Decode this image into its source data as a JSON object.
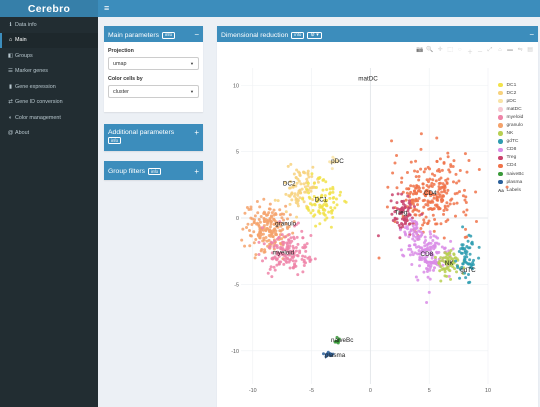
{
  "app": {
    "logo": "Cerebro",
    "menu_icon": "hamburger-icon"
  },
  "sidebar": {
    "items": [
      {
        "icon": "info-icon",
        "glyph": "ℹ",
        "label": "Data info"
      },
      {
        "icon": "home-icon",
        "glyph": "⌂",
        "label": "Main",
        "active": true
      },
      {
        "icon": "layers-icon",
        "glyph": "◧",
        "label": "Groups"
      },
      {
        "icon": "list-icon",
        "glyph": "☰",
        "label": "Marker genes"
      },
      {
        "icon": "bar-chart-icon",
        "glyph": "▮",
        "label": "Gene expression"
      },
      {
        "icon": "exchange-icon",
        "glyph": "⇄",
        "label": "Gene ID conversion"
      },
      {
        "icon": "palette-icon",
        "glyph": "◐",
        "label": "Color management"
      },
      {
        "icon": "at-icon",
        "glyph": "@",
        "label": "About"
      }
    ]
  },
  "main_params": {
    "title": "Main parameters",
    "info": "info",
    "collapse_icon": "−",
    "projection_label": "Projection",
    "projection_value": "umap",
    "color_label": "Color cells by",
    "color_value": "cluster"
  },
  "additional_params": {
    "title": "Additional parameters",
    "info": "info",
    "expand_icon": "+"
  },
  "group_filters": {
    "title": "Group filters",
    "info": "info",
    "expand_icon": "+"
  },
  "plot_box": {
    "title": "Dimensional reduction",
    "info": "info",
    "gear": "⚙ ▾",
    "collapse_icon": "−",
    "modebar": [
      "📷",
      "🔍",
      "✛",
      "⬚",
      "◌",
      "＋",
      "－",
      "⤢",
      "⌂",
      "▬",
      "⇋",
      "▤"
    ]
  },
  "colors": {
    "DC1": "#f1e24a",
    "DC2": "#f7d27e",
    "pDC": "#f9e3a6",
    "matDC": "#f6c9d2",
    "myeloid": "#ef84a8",
    "granulo": "#f4a26b",
    "NK": "#b8cf53",
    "gdTC": "#2e9cb0",
    "CD8": "#d98ce6",
    "Treg": "#c9436d",
    "CD4": "#f0734a",
    "naiveBc": "#3a9a3a",
    "plasma": "#2b5f9a"
  },
  "legend": [
    {
      "name": "DC1"
    },
    {
      "name": "DC2"
    },
    {
      "name": "pDC"
    },
    {
      "name": "matDC"
    },
    {
      "name": "myeloid"
    },
    {
      "name": "granulo"
    },
    {
      "name": "NK"
    },
    {
      "name": "gdTC"
    },
    {
      "name": "CD8"
    },
    {
      "name": "Treg"
    },
    {
      "name": "CD4"
    },
    {
      "name": "naiveBc"
    },
    {
      "name": "plasma"
    },
    {
      "name": "Labels",
      "aa": "Aa"
    }
  ],
  "chart_data": {
    "type": "scatter",
    "xlim": [
      -11,
      10
    ],
    "ylim": [
      -12.5,
      11.3
    ],
    "x_ticks": [
      -10,
      -5,
      0,
      5,
      10
    ],
    "y_ticks": [
      10,
      5,
      0,
      -5,
      -10
    ],
    "grid": true,
    "legend_position": "right",
    "clusters": [
      {
        "name": "CD4",
        "blobs": [
          [
            5.2,
            1.8,
            3.0,
            2.5,
            260
          ]
        ]
      },
      {
        "name": "Treg",
        "blobs": [
          [
            2.8,
            0.4,
            0.9,
            1.3,
            70
          ]
        ]
      },
      {
        "name": "CD8",
        "blobs": [
          [
            5.0,
            -2.8,
            1.8,
            1.6,
            150
          ],
          [
            3.5,
            -0.9,
            0.7,
            0.9,
            30
          ]
        ]
      },
      {
        "name": "NK",
        "blobs": [
          [
            6.7,
            -3.3,
            1.0,
            1.0,
            70
          ]
        ]
      },
      {
        "name": "gdTC",
        "blobs": [
          [
            8.2,
            -3.0,
            0.7,
            1.5,
            60
          ]
        ]
      },
      {
        "name": "granulo",
        "blobs": [
          [
            -8.8,
            -0.7,
            1.6,
            1.6,
            180
          ]
        ]
      },
      {
        "name": "myeloid",
        "blobs": [
          [
            -7.0,
            -2.6,
            2.0,
            1.4,
            150
          ]
        ]
      },
      {
        "name": "DC2",
        "blobs": [
          [
            -6.0,
            2.2,
            1.3,
            1.4,
            90
          ]
        ]
      },
      {
        "name": "DC1",
        "blobs": [
          [
            -4.0,
            1.3,
            1.3,
            1.6,
            90
          ]
        ]
      },
      {
        "name": "pDC",
        "blobs": [
          [
            -3.1,
            4.2,
            0.4,
            0.3,
            10
          ]
        ]
      },
      {
        "name": "naiveBc",
        "blobs": [
          [
            -2.8,
            -9.3,
            0.2,
            0.2,
            12
          ]
        ]
      },
      {
        "name": "plasma",
        "blobs": [
          [
            -3.6,
            -10.3,
            0.4,
            0.15,
            14
          ]
        ]
      }
    ],
    "labels": [
      {
        "text": "matDC",
        "x": -0.2,
        "y": 10.5
      },
      {
        "text": "pDC",
        "x": -2.8,
        "y": 4.3
      },
      {
        "text": "DC2",
        "x": -6.9,
        "y": 2.6
      },
      {
        "text": "DC1",
        "x": -4.2,
        "y": 1.4
      },
      {
        "text": "CD4",
        "x": 5.1,
        "y": 1.9
      },
      {
        "text": "Treg",
        "x": 2.6,
        "y": 0.4
      },
      {
        "text": "granulo",
        "x": -7.2,
        "y": -0.4
      },
      {
        "text": "myeloid",
        "x": -7.4,
        "y": -2.6
      },
      {
        "text": "CD8",
        "x": 4.8,
        "y": -2.7
      },
      {
        "text": "NK",
        "x": 6.7,
        "y": -3.4
      },
      {
        "text": "gdTC",
        "x": 8.3,
        "y": -3.9
      },
      {
        "text": "naiveBc",
        "x": -2.4,
        "y": -9.2
      },
      {
        "text": "plasma",
        "x": -3.0,
        "y": -10.3
      }
    ]
  }
}
